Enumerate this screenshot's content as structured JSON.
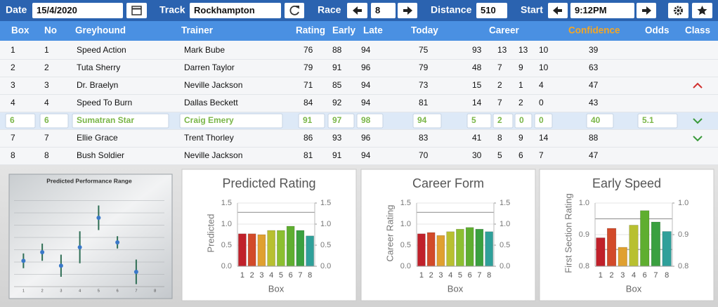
{
  "toolbar": {
    "date_label": "Date",
    "date": "15/4/2020",
    "track_label": "Track",
    "track": "Rockhampton",
    "race_label": "Race",
    "race": 8,
    "distance_label": "Distance",
    "distance": 510,
    "start_label": "Start",
    "start": "9:12PM"
  },
  "table": {
    "headers": [
      "Box",
      "No",
      "Greyhound",
      "Trainer",
      "Rating",
      "Early",
      "Late",
      "Today",
      "Career",
      "Confidence",
      "Odds",
      "Class"
    ],
    "rows": [
      {
        "box": 1,
        "no": 1,
        "greyhound": "Speed Action",
        "trainer": "Mark Bube",
        "rating": 76,
        "early": 88,
        "late": 94,
        "today": 75,
        "career": [
          93,
          13,
          13,
          10
        ],
        "confidence": 39
      },
      {
        "box": 2,
        "no": 2,
        "greyhound": "Tuta Sherry",
        "trainer": "Darren Taylor",
        "rating": 79,
        "early": 91,
        "late": 96,
        "today": 79,
        "career": [
          48,
          7,
          9,
          10
        ],
        "confidence": 63
      },
      {
        "box": 3,
        "no": 3,
        "greyhound": "Dr. Braelyn",
        "trainer": "Neville Jackson",
        "rating": 71,
        "early": 85,
        "late": 94,
        "today": 73,
        "career": [
          15,
          2,
          1,
          4
        ],
        "confidence": 47,
        "class": "up"
      },
      {
        "box": 4,
        "no": 4,
        "greyhound": "Speed To Burn",
        "trainer": "Dallas Beckett",
        "rating": 84,
        "early": 92,
        "late": 94,
        "today": 81,
        "career": [
          14,
          7,
          2,
          0
        ],
        "confidence": 43
      },
      {
        "box": 6,
        "no": 6,
        "greyhound": "Sumatran Star",
        "trainer": "Craig Emery",
        "rating": 91,
        "early": 97,
        "late": 98,
        "today": 94,
        "career": [
          5,
          2,
          0,
          0
        ],
        "confidence": 40,
        "odds": 5.1,
        "class": "down",
        "selected": true
      },
      {
        "box": 7,
        "no": 7,
        "greyhound": "Ellie Grace",
        "trainer": "Trent Thorley",
        "rating": 86,
        "early": 93,
        "late": 96,
        "today": 83,
        "career": [
          41,
          8,
          9,
          14
        ],
        "confidence": 88,
        "class": "down"
      },
      {
        "box": 8,
        "no": 8,
        "greyhound": "Bush Soldier",
        "trainer": "Neville Jackson",
        "rating": 81,
        "early": 91,
        "late": 94,
        "today": 70,
        "career": [
          30,
          5,
          6,
          7
        ],
        "confidence": 47
      }
    ]
  },
  "charts": [
    {
      "type": "errorbar",
      "title": "Predicted Performance Range",
      "categories": [
        1,
        2,
        3,
        4,
        5,
        6,
        7,
        8
      ],
      "values": [
        2.1,
        2.8,
        1.7,
        3.2,
        5.6,
        3.6,
        1.2,
        null
      ],
      "errors": [
        0.6,
        0.7,
        0.9,
        1.3,
        1.0,
        0.5,
        1.0,
        null
      ],
      "ylim": [
        0,
        8
      ],
      "grid_lines": [
        1,
        2,
        3,
        4,
        5,
        6,
        7
      ],
      "color": "#3a78c8",
      "error_color": "#2f6e55"
    },
    {
      "type": "bar",
      "title": "Predicted Rating",
      "ylabel": "Predicted",
      "xlabel": "Box",
      "categories": [
        1,
        2,
        3,
        4,
        5,
        6,
        7,
        8
      ],
      "values": [
        0.77,
        0.77,
        0.75,
        0.85,
        0.85,
        0.95,
        0.85,
        0.72
      ],
      "colors": [
        "#c0202a",
        "#d24a2a",
        "#e0a030",
        "#b8c030",
        "#8cbf30",
        "#5fae30",
        "#3aa040",
        "#2fa09a"
      ],
      "ylim": [
        0,
        1.5
      ],
      "yticks": [
        {
          "value": 0,
          "label": "0.0"
        },
        0.5,
        {
          "value": 1,
          "label": "1.0"
        },
        1.5
      ],
      "y2lim": [
        0,
        1.5
      ],
      "y2ticks": [
        {
          "value": 0,
          "label": "0.0"
        },
        0.5,
        {
          "value": 1,
          "label": "1.0"
        },
        1.5
      ],
      "ref_lines": [
        1.28
      ]
    },
    {
      "type": "bar",
      "title": "Career Form",
      "ylabel": "Career Rating",
      "xlabel": "Box",
      "categories": [
        1,
        2,
        3,
        4,
        5,
        6,
        7,
        8
      ],
      "values": [
        0.77,
        0.8,
        0.73,
        0.82,
        0.88,
        0.92,
        0.88,
        0.82
      ],
      "colors": [
        "#c0202a",
        "#d24a2a",
        "#e0a030",
        "#b8c030",
        "#8cbf30",
        "#5fae30",
        "#3aa040",
        "#2fa09a"
      ],
      "ylim": [
        0,
        1.5
      ],
      "yticks": [
        {
          "value": 0,
          "label": "0.0"
        },
        0.5,
        {
          "value": 1,
          "label": "1.0"
        },
        1.5
      ],
      "y2lim": [
        0,
        1.5
      ],
      "y2ticks": [
        {
          "value": 0,
          "label": "0.0"
        },
        0.5,
        {
          "value": 1,
          "label": "1.0"
        },
        1.5
      ],
      "ref_lines": [
        1.28
      ]
    },
    {
      "type": "bar",
      "title": "Early Speed",
      "ylabel": "First Section Rating",
      "xlabel": "Box",
      "categories": [
        1,
        2,
        3,
        4,
        6,
        7,
        8
      ],
      "values": [
        0.89,
        0.92,
        0.86,
        0.93,
        0.976,
        0.94,
        0.91
      ],
      "colors": [
        "#c0202a",
        "#d24a2a",
        "#e0a030",
        "#b8c030",
        "#5fae30",
        "#3aa040",
        "#2fa09a"
      ],
      "ylim": [
        0.8,
        1.0
      ],
      "yticks": [
        0.8,
        0.9,
        {
          "value": 1,
          "label": "1.0"
        }
      ],
      "y2lim": [
        0.8,
        1.0
      ],
      "y2ticks": [
        0.8,
        0.9,
        {
          "value": 1,
          "label": "1.0"
        }
      ],
      "ref_lines": [
        0.95,
        0.853
      ]
    }
  ]
}
